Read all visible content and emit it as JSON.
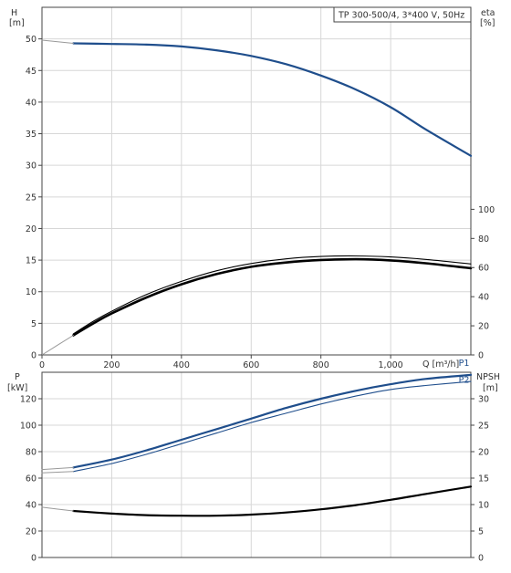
{
  "chart_data": [
    {
      "type": "line",
      "panel": "head-efficiency",
      "title": "TP 300-500/4, 3*400 V, 50Hz",
      "xlabel": "Q [m³/h]",
      "ylabel_left": [
        "H",
        "[m]"
      ],
      "ylabel_right": [
        "eta",
        "[%]"
      ],
      "xlim": [
        0,
        1230
      ],
      "ylim_left": [
        0,
        55
      ],
      "ylim_right": [
        0,
        170
      ],
      "x_ticks": [
        "0",
        "200",
        "400",
        "600",
        "800",
        "1,000"
      ],
      "x_tick_values": [
        0,
        200,
        400,
        600,
        800,
        1000
      ],
      "y_left_ticks": [
        "0",
        "5",
        "10",
        "15",
        "20",
        "25",
        "30",
        "35",
        "40",
        "45",
        "50"
      ],
      "y_left_tick_values": [
        0,
        5,
        10,
        15,
        20,
        25,
        30,
        35,
        40,
        45,
        50
      ],
      "y_right_ticks": [
        "0",
        "20",
        "40",
        "60",
        "80",
        "100"
      ],
      "y_right_tick_values": [
        0,
        20,
        40,
        60,
        80,
        100
      ],
      "grid": true,
      "series": [
        {
          "axis": "left",
          "color": "#1f4e8c",
          "width": 2.2,
          "style": "solid",
          "x": [
            90,
            200,
            300,
            400,
            500,
            600,
            700,
            800,
            900,
            1000,
            1100,
            1230
          ],
          "y": [
            49.3,
            49.2,
            49.1,
            48.8,
            48.2,
            47.3,
            46.0,
            44.2,
            42.0,
            39.2,
            35.7,
            31.5
          ]
        },
        {
          "axis": "left",
          "color": "#999999",
          "width": 1,
          "style": "extension",
          "x": [
            0,
            90
          ],
          "y": [
            49.8,
            49.3
          ]
        },
        {
          "axis": "right",
          "color": "#000000",
          "width": 2.6,
          "style": "solid",
          "x": [
            90,
            150,
            200,
            300,
            400,
            500,
            600,
            700,
            800,
            900,
            1000,
            1100,
            1230
          ],
          "y": [
            13.5,
            22,
            28.5,
            39.5,
            48.5,
            55.5,
            60.5,
            63.5,
            65.2,
            65.7,
            64.9,
            63.0,
            59.5
          ]
        },
        {
          "axis": "right",
          "color": "#000000",
          "width": 1.1,
          "style": "solid",
          "x": [
            90,
            150,
            200,
            300,
            400,
            500,
            600,
            700,
            800,
            900,
            1000,
            1100,
            1230
          ],
          "y": [
            14.5,
            23.5,
            30,
            41.5,
            50.5,
            57.8,
            62.8,
            66,
            67.6,
            68.0,
            67.3,
            65.6,
            62.5
          ]
        },
        {
          "axis": "right",
          "color": "#999999",
          "width": 1,
          "style": "extension",
          "x": [
            0,
            90
          ],
          "y": [
            0,
            13.5
          ]
        }
      ]
    },
    {
      "type": "line",
      "panel": "power-npsh",
      "xlim": [
        0,
        1230
      ],
      "ylabel_left": [
        "P",
        "[kW]"
      ],
      "ylabel_right": [
        "NPSH",
        "[m]"
      ],
      "ylim_left": [
        0,
        140
      ],
      "ylim_right": [
        0,
        35
      ],
      "y_left_ticks": [
        "0",
        "20",
        "40",
        "60",
        "80",
        "100",
        "120"
      ],
      "y_left_tick_values": [
        0,
        20,
        40,
        60,
        80,
        100,
        120
      ],
      "y_right_ticks": [
        "0",
        "5",
        "10",
        "15",
        "20",
        "25",
        "30"
      ],
      "y_right_tick_values": [
        0,
        5,
        10,
        15,
        20,
        25,
        30
      ],
      "grid": true,
      "labels": [
        {
          "text": "P1",
          "x": 1195,
          "y": 147,
          "axis": "left",
          "color": "#1f4e8c"
        },
        {
          "text": "P2",
          "x": 1195,
          "y": 134,
          "axis": "left",
          "color": "#1f4e8c"
        }
      ],
      "series": [
        {
          "name": "P1",
          "axis": "left",
          "color": "#1f4e8c",
          "width": 2.2,
          "style": "solid",
          "x": [
            90,
            200,
            300,
            400,
            500,
            600,
            700,
            800,
            900,
            1000,
            1100,
            1230
          ],
          "y": [
            68,
            74,
            81,
            89,
            97,
            105,
            113,
            120,
            126,
            131,
            135,
            138
          ]
        },
        {
          "name": "P2",
          "axis": "left",
          "color": "#1f4e8c",
          "width": 1.1,
          "style": "solid",
          "x": [
            90,
            200,
            300,
            400,
            500,
            600,
            700,
            800,
            900,
            1000,
            1100,
            1230
          ],
          "y": [
            65,
            71,
            78,
            86,
            94,
            102,
            109,
            116,
            122,
            127,
            130,
            133
          ]
        },
        {
          "axis": "left",
          "color": "#999999",
          "width": 1,
          "style": "extension",
          "x": [
            0,
            90
          ],
          "y": [
            66.5,
            68
          ]
        },
        {
          "axis": "left",
          "color": "#999999",
          "width": 1,
          "style": "extension",
          "x": [
            0,
            90
          ],
          "y": [
            64,
            65
          ]
        },
        {
          "axis": "right",
          "color": "#000000",
          "width": 2.2,
          "style": "solid",
          "x": [
            90,
            200,
            300,
            400,
            500,
            600,
            700,
            800,
            900,
            1000,
            1100,
            1230
          ],
          "y": [
            8.8,
            8.3,
            8.0,
            7.9,
            7.9,
            8.1,
            8.5,
            9.1,
            9.9,
            10.9,
            12.0,
            13.4
          ]
        },
        {
          "axis": "right",
          "color": "#999999",
          "width": 1,
          "style": "extension",
          "x": [
            0,
            90
          ],
          "y": [
            9.5,
            8.8
          ]
        }
      ]
    }
  ]
}
